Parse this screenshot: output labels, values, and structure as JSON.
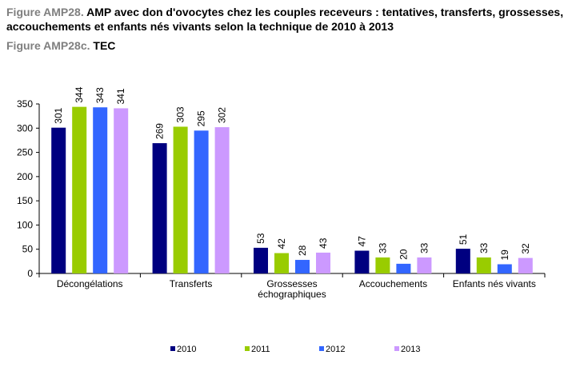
{
  "header": {
    "title_prefix": "Figure AMP28.",
    "title_text": "AMP avec don d'ovocytes chez les couples receveurs : tentatives, transferts, grossesses, accouchements et enfants nés vivants selon la technique de 2010 à 2013",
    "subtitle_prefix": "Figure AMP28c.",
    "subtitle_text": "TEC"
  },
  "chart_data": {
    "type": "bar",
    "categories": [
      "Décongélations",
      "Transferts",
      "Grossesses échographiques",
      "Accouchements",
      "Enfants nés vivants"
    ],
    "category_lines": [
      [
        "Décongélations"
      ],
      [
        "Transferts"
      ],
      [
        "Grossesses",
        "échographiques"
      ],
      [
        "Accouchements"
      ],
      [
        "Enfants nés vivants"
      ]
    ],
    "series": [
      {
        "name": "2010",
        "color": "#000080",
        "values": [
          301,
          269,
          53,
          47,
          51
        ]
      },
      {
        "name": "2011",
        "color": "#99cc00",
        "values": [
          344,
          303,
          42,
          33,
          33
        ]
      },
      {
        "name": "2012",
        "color": "#3366ff",
        "values": [
          343,
          295,
          28,
          20,
          19
        ]
      },
      {
        "name": "2013",
        "color": "#cc99ff",
        "values": [
          341,
          302,
          43,
          33,
          32
        ]
      }
    ],
    "ylim": [
      0,
      350
    ],
    "yticks": [
      0,
      50,
      100,
      150,
      200,
      250,
      300,
      350
    ],
    "legend_position": "bottom",
    "grid": false
  }
}
